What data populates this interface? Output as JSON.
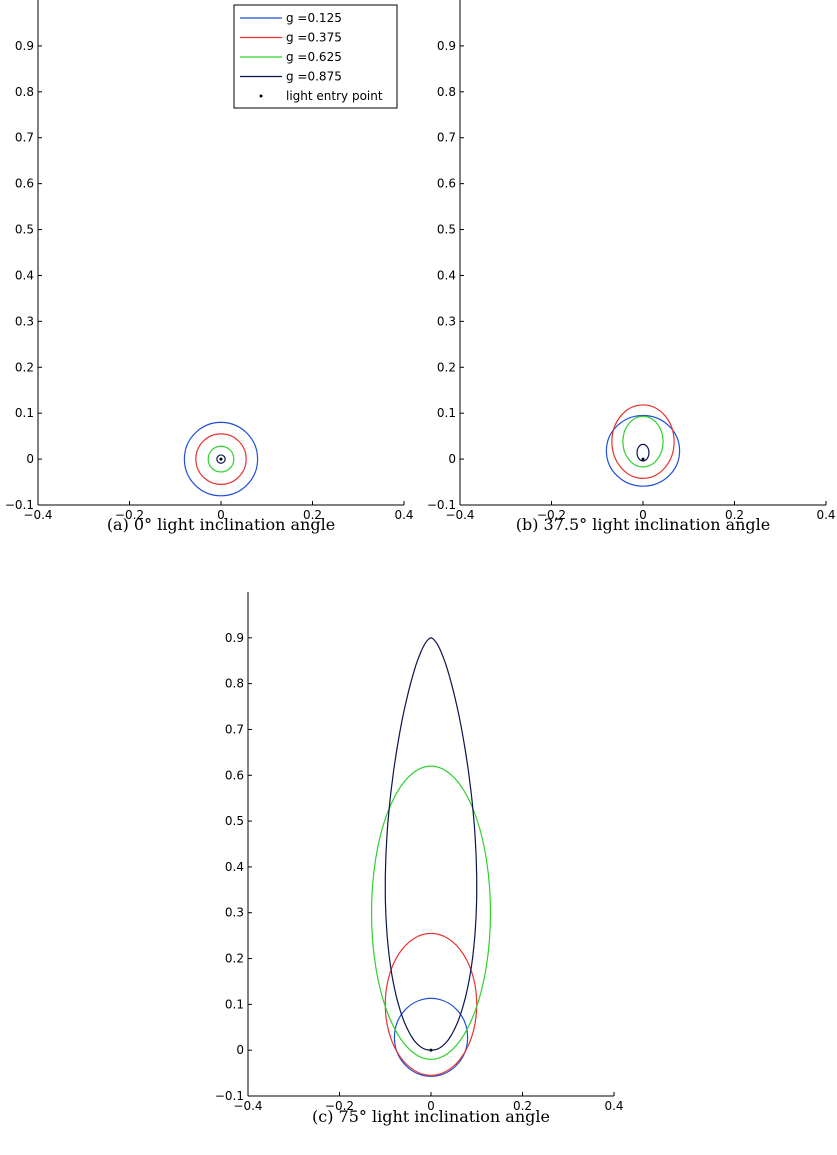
{
  "chart_data": [
    {
      "type": "line",
      "panel": "a",
      "caption": "(a) 0° light inclination angle",
      "xlim": [
        -0.4,
        0.4
      ],
      "ylim": [
        -0.1,
        1.0
      ],
      "xticks": [
        -0.4,
        -0.2,
        0,
        0.2,
        0.4
      ],
      "yticks": [
        -0.1,
        0,
        0.1,
        0.2,
        0.3,
        0.4,
        0.5,
        0.6,
        0.7,
        0.8,
        0.9
      ],
      "grid": false,
      "legend": {
        "position": "top-right",
        "entries": [
          {
            "label": "g =0.125",
            "color": "#1f4fd8",
            "kind": "line"
          },
          {
            "label": "g =0.375",
            "color": "#e8322f",
            "kind": "line"
          },
          {
            "label": "g =0.625",
            "color": "#2fd12f",
            "kind": "line"
          },
          {
            "label": "g =0.875",
            "color": "#0b1450",
            "kind": "line"
          },
          {
            "label": "light entry point",
            "color": "#000000",
            "kind": "marker"
          }
        ]
      },
      "series": [
        {
          "name": "g =0.125",
          "color": "#1f4fd8",
          "ellipse": {
            "cx": 0,
            "cy": 0,
            "rx": 0.08,
            "ry": 0.08
          }
        },
        {
          "name": "g =0.375",
          "color": "#e8322f",
          "ellipse": {
            "cx": 0,
            "cy": 0,
            "rx": 0.055,
            "ry": 0.055
          }
        },
        {
          "name": "g =0.625",
          "color": "#2fd12f",
          "ellipse": {
            "cx": 0,
            "cy": 0,
            "rx": 0.028,
            "ry": 0.028
          }
        },
        {
          "name": "g =0.875",
          "color": "#0b1450",
          "ellipse": {
            "cx": 0,
            "cy": 0,
            "rx": 0.009,
            "ry": 0.009
          }
        }
      ],
      "entry_point": {
        "x": 0,
        "y": 0
      }
    },
    {
      "type": "line",
      "panel": "b",
      "caption": "(b) 37.5° light inclination angle",
      "xlim": [
        -0.4,
        0.4
      ],
      "ylim": [
        -0.1,
        1.0
      ],
      "xticks": [
        -0.4,
        -0.2,
        0,
        0.2,
        0.4
      ],
      "yticks": [
        -0.1,
        0,
        0.1,
        0.2,
        0.3,
        0.4,
        0.5,
        0.6,
        0.7,
        0.8,
        0.9
      ],
      "grid": false,
      "series": [
        {
          "name": "g =0.125",
          "color": "#1f4fd8",
          "ellipse": {
            "cx": 0,
            "cy": 0.018,
            "rx": 0.08,
            "ry": 0.077
          }
        },
        {
          "name": "g =0.375",
          "color": "#e8322f",
          "ellipse": {
            "cx": 0,
            "cy": 0.038,
            "rx": 0.068,
            "ry": 0.08
          }
        },
        {
          "name": "g =0.625",
          "color": "#2fd12f",
          "ellipse": {
            "cx": 0,
            "cy": 0.038,
            "rx": 0.044,
            "ry": 0.055
          }
        },
        {
          "name": "g =0.875",
          "color": "#0b1450",
          "ellipse": {
            "cx": 0,
            "cy": 0.014,
            "rx": 0.013,
            "ry": 0.018
          }
        }
      ],
      "entry_point": {
        "x": 0,
        "y": 0
      }
    },
    {
      "type": "line",
      "panel": "c",
      "caption": "(c) 75° light inclination angle",
      "xlim": [
        -0.4,
        0.4
      ],
      "ylim": [
        -0.1,
        1.0
      ],
      "xticks": [
        -0.4,
        -0.2,
        0,
        0.2,
        0.4
      ],
      "yticks": [
        -0.1,
        0,
        0.1,
        0.2,
        0.3,
        0.4,
        0.5,
        0.6,
        0.7,
        0.8,
        0.9
      ],
      "grid": false,
      "series": [
        {
          "name": "g =0.125",
          "color": "#1f4fd8",
          "ellipse": {
            "cx": 0,
            "cy": 0.028,
            "rx": 0.08,
            "ry": 0.085
          }
        },
        {
          "name": "g =0.375",
          "color": "#e8322f",
          "ellipse": {
            "cx": 0,
            "cy": 0.1,
            "rx": 0.1,
            "ry": 0.155
          }
        },
        {
          "name": "g =0.625",
          "color": "#2fd12f",
          "ellipse": {
            "cx": 0,
            "cy": 0.3,
            "rx": 0.13,
            "ry": 0.32
          }
        },
        {
          "name": "g =0.875",
          "color": "#0b1450",
          "teardrop": {
            "top": 0.9,
            "bottom": 0,
            "halfwidth": 0.1
          }
        }
      ],
      "entry_point": {
        "x": 0,
        "y": 0
      }
    }
  ]
}
